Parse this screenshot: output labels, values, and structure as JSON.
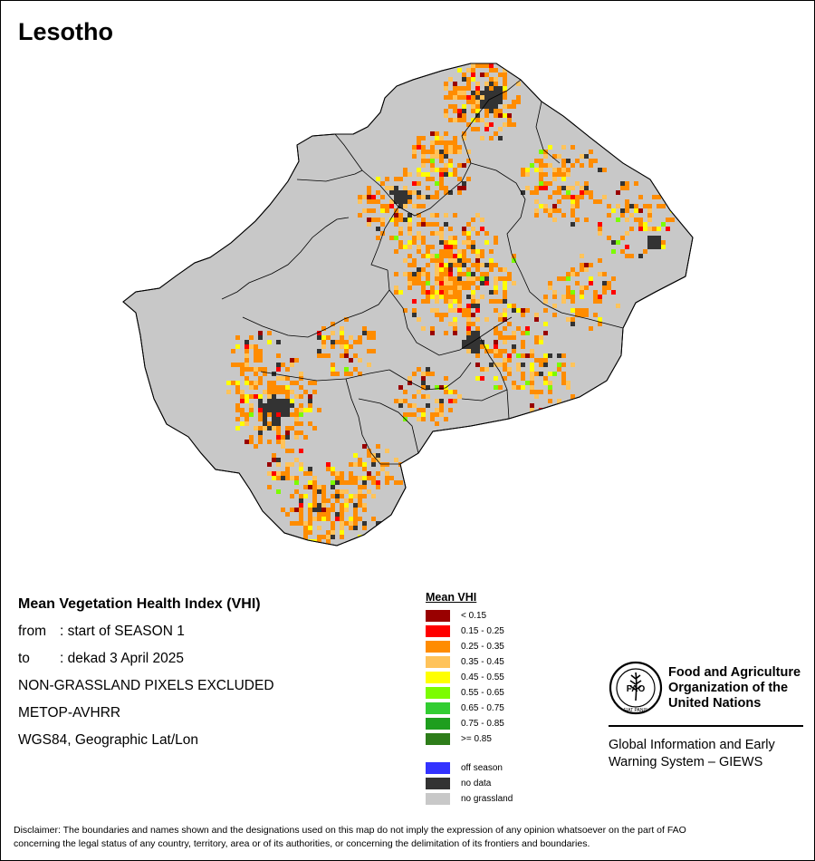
{
  "map": {
    "title": "Lesotho"
  },
  "info": {
    "heading": "Mean Vegetation Health Index (VHI)",
    "from_label": "from",
    "from_value": ": start of SEASON 1",
    "to_label": "to",
    "to_value": ": dekad 3 April 2025",
    "note": "NON-GRASSLAND PIXELS EXCLUDED",
    "sensor": "METOP-AVHRR",
    "projection": "WGS84, Geographic Lat/Lon"
  },
  "legend": {
    "title": "Mean VHI",
    "classes": [
      {
        "label": "< 0.15",
        "color": "#990000"
      },
      {
        "label": "0.15 - 0.25",
        "color": "#ff0000"
      },
      {
        "label": "0.25 - 0.35",
        "color": "#ff8c00"
      },
      {
        "label": "0.35 - 0.45",
        "color": "#ffc35a"
      },
      {
        "label": "0.45 - 0.55",
        "color": "#ffff00"
      },
      {
        "label": "0.55 - 0.65",
        "color": "#7cfc00"
      },
      {
        "label": "0.65 - 0.75",
        "color": "#32cd32"
      },
      {
        "label": "0.75 - 0.85",
        "color": "#1e9e1e"
      },
      {
        "label": ">= 0.85",
        "color": "#2e7d1a"
      }
    ],
    "special": [
      {
        "label": "off season",
        "color": "#3333ff"
      },
      {
        "label": "no data",
        "color": "#333333"
      },
      {
        "label": "no grassland",
        "color": "#c8c8c8"
      }
    ]
  },
  "fao": {
    "logo_letters": "FAO",
    "logo_motto": "FIAT PANIS",
    "name_lines": [
      "Food and Agriculture",
      "Organization of the",
      "United Nations"
    ],
    "giews_lines": [
      "Global Information and Early",
      "Warning System – GIEWS"
    ]
  },
  "disclaimer": {
    "line1": "Disclaimer: The boundaries and names shown and the designations used on this map do not imply the expression of any opinion whatsoever on the part of FAO",
    "line2": "concerning the legal status of any country, territory, area or of its authorities, or concerning the delimitation of its frontiers and boundaries."
  }
}
